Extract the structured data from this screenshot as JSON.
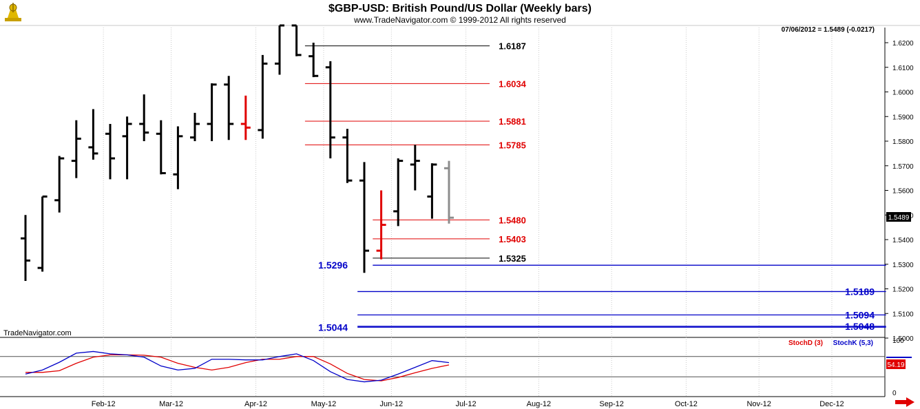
{
  "header": {
    "title": "$GBP-USD:  British Pound/US Dollar  (Weekly bars)",
    "copyright": "www.TradeNavigator.com © 1999-2012 All rights reserved",
    "quote": "07/06/2012 = 1.5489 (-0.0217)",
    "watermark": "TradeNavigator.com"
  },
  "colors": {
    "bar": "#000000",
    "bar_highlight": "#e00000",
    "bar_current": "#8c8c8c",
    "fib_black": "#000000",
    "fib_red": "#e00000",
    "fib_blue": "#0000c8",
    "stoch_d": "#e00000",
    "stoch_k": "#0000c8",
    "current_price_box": "#000000",
    "stoch_box": "#e00000",
    "arrow": "#e00000"
  },
  "chart_data": [
    {
      "type": "ohlc",
      "title": "$GBP-USD:  British Pound/US Dollar  (Weekly bars)",
      "ylim": [
        1.5005,
        1.6275
      ],
      "y_ticks": [
        "1.6200",
        "1.6100",
        "1.6000",
        "1.5900",
        "1.5800",
        "1.5700",
        "1.5600",
        "1.5500",
        "1.5400",
        "1.5300",
        "1.5200",
        "1.5100",
        "1.5000"
      ],
      "y_tick_values": [
        1.62,
        1.61,
        1.6,
        1.59,
        1.58,
        1.57,
        1.56,
        1.55,
        1.54,
        1.53,
        1.52,
        1.51,
        1.5
      ],
      "x_labels": [
        "Feb-12",
        "Mar-12",
        "Apr-12",
        "May-12",
        "Jun-12",
        "Jul-12",
        "Aug-12",
        "Sep-12",
        "Oct-12",
        "Nov-12",
        "Dec-12"
      ],
      "x_label_weeks": [
        4.6,
        8.6,
        13.6,
        17.6,
        21.6,
        26.0,
        30.3,
        34.6,
        39.0,
        43.3,
        47.6
      ],
      "current_price_label": "1.5489",
      "bars": [
        {
          "open": 1.5405,
          "high": 1.55,
          "low": 1.5232,
          "close": 1.5315,
          "style": "normal"
        },
        {
          "open": 1.5285,
          "high": 1.5575,
          "low": 1.527,
          "close": 1.5575,
          "style": "normal"
        },
        {
          "open": 1.556,
          "high": 1.574,
          "low": 1.551,
          "close": 1.573,
          "style": "normal"
        },
        {
          "open": 1.572,
          "high": 1.5885,
          "low": 1.565,
          "close": 1.581,
          "style": "normal"
        },
        {
          "open": 1.5775,
          "high": 1.593,
          "low": 1.5725,
          "close": 1.575,
          "style": "normal"
        },
        {
          "open": 1.583,
          "high": 1.587,
          "low": 1.5645,
          "close": 1.573,
          "style": "normal"
        },
        {
          "open": 1.582,
          "high": 1.59,
          "low": 1.5645,
          "close": 1.587,
          "style": "normal"
        },
        {
          "open": 1.587,
          "high": 1.599,
          "low": 1.58,
          "close": 1.5835,
          "style": "normal"
        },
        {
          "open": 1.583,
          "high": 1.5885,
          "low": 1.5665,
          "close": 1.567,
          "style": "normal"
        },
        {
          "open": 1.5665,
          "high": 1.586,
          "low": 1.5605,
          "close": 1.582,
          "style": "normal"
        },
        {
          "open": 1.5815,
          "high": 1.5915,
          "low": 1.58,
          "close": 1.587,
          "style": "normal"
        },
        {
          "open": 1.587,
          "high": 1.6035,
          "low": 1.58,
          "close": 1.603,
          "style": "normal"
        },
        {
          "open": 1.603,
          "high": 1.6065,
          "low": 1.5805,
          "close": 1.587,
          "style": "normal"
        },
        {
          "open": 1.587,
          "high": 1.5985,
          "low": 1.5805,
          "close": 1.5855,
          "style": "highlight"
        },
        {
          "open": 1.5845,
          "high": 1.615,
          "low": 1.581,
          "close": 1.6115,
          "style": "normal"
        },
        {
          "open": 1.6115,
          "high": 1.627,
          "low": 1.607,
          "close": 1.627,
          "style": "normal"
        },
        {
          "open": 1.627,
          "high": 1.627,
          "low": 1.6145,
          "close": 1.615,
          "style": "normal"
        },
        {
          "open": 1.6145,
          "high": 1.62,
          "low": 1.606,
          "close": 1.6065,
          "style": "normal"
        },
        {
          "open": 1.61,
          "high": 1.6125,
          "low": 1.573,
          "close": 1.5815,
          "style": "normal"
        },
        {
          "open": 1.5815,
          "high": 1.585,
          "low": 1.563,
          "close": 1.564,
          "style": "normal"
        },
        {
          "open": 1.564,
          "high": 1.5715,
          "low": 1.5265,
          "close": 1.5355,
          "style": "normal"
        },
        {
          "open": 1.5355,
          "high": 1.56,
          "low": 1.532,
          "close": 1.546,
          "style": "highlight"
        },
        {
          "open": 1.5515,
          "high": 1.573,
          "low": 1.5455,
          "close": 1.572,
          "style": "normal"
        },
        {
          "open": 1.5705,
          "high": 1.5785,
          "low": 1.56,
          "close": 1.572,
          "style": "normal"
        },
        {
          "open": 1.5575,
          "high": 1.571,
          "low": 1.5485,
          "close": 1.5705,
          "style": "normal"
        },
        {
          "open": 1.569,
          "high": 1.572,
          "low": 1.5465,
          "close": 1.5489,
          "style": "current"
        }
      ],
      "levels": [
        {
          "value": 1.6187,
          "label": "1.6187",
          "color_key": "fib_black",
          "start_week": 16.5,
          "end_week": 27.4,
          "label_side": "right"
        },
        {
          "value": 1.6034,
          "label": "1.6034",
          "color_key": "fib_red",
          "start_week": 16.5,
          "end_week": 27.4,
          "label_side": "right"
        },
        {
          "value": 1.5881,
          "label": "1.5881",
          "color_key": "fib_red",
          "start_week": 16.5,
          "end_week": 27.4,
          "label_side": "right"
        },
        {
          "value": 1.5785,
          "label": "1.5785",
          "color_key": "fib_red",
          "start_week": 16.5,
          "end_week": 27.4,
          "label_side": "right"
        },
        {
          "value": 1.548,
          "label": "1.5480",
          "color_key": "fib_red",
          "start_week": 20.5,
          "end_week": 27.4,
          "label_side": "right"
        },
        {
          "value": 1.5403,
          "label": "1.5403",
          "color_key": "fib_red",
          "start_week": 20.5,
          "end_week": 27.4,
          "label_side": "right"
        },
        {
          "value": 1.5325,
          "label": "1.5325",
          "color_key": "fib_black",
          "start_week": 20.5,
          "end_week": 27.4,
          "label_side": "right"
        },
        {
          "value": 1.5296,
          "label": "1.5296",
          "color_key": "fib_blue",
          "start_week": 20.5,
          "end_week": 50.8,
          "label_side": "left"
        },
        {
          "value": 1.5189,
          "label": "1.5189",
          "color_key": "fib_blue",
          "start_week": 19.6,
          "end_week": 50.8,
          "label_side": "far-right"
        },
        {
          "value": 1.5094,
          "label": "1.5094",
          "color_key": "fib_blue",
          "start_week": 19.6,
          "end_week": 50.8,
          "label_side": "far-right"
        },
        {
          "value": 1.5044,
          "label": "1.5044",
          "color_key": "fib_blue",
          "start_week": 19.6,
          "end_week": 50.8,
          "label_side": "left"
        },
        {
          "value": 1.5048,
          "label": "1.5048",
          "color_key": "fib_blue",
          "start_week": 19.6,
          "end_week": 50.8,
          "label_side": "far-right"
        }
      ]
    },
    {
      "type": "line",
      "ylim": [
        0,
        100
      ],
      "y_ticks": [
        "100",
        "0"
      ],
      "y_tick_values": [
        100,
        0
      ],
      "reference_lines": [
        80,
        20
      ],
      "current_value_label": "54.19",
      "series": [
        {
          "name": "StochD (3)",
          "color_key": "stoch_d",
          "values": [
            33,
            33,
            38,
            60,
            78,
            85,
            85,
            84,
            78,
            60,
            48,
            40,
            48,
            62,
            72,
            72,
            80,
            80,
            58,
            30,
            12,
            8,
            18,
            32,
            45,
            55
          ]
        },
        {
          "name": "StochK (5,3)",
          "color_key": "stoch_k",
          "values": [
            28,
            40,
            63,
            90,
            95,
            88,
            85,
            78,
            52,
            40,
            45,
            72,
            72,
            70,
            70,
            80,
            88,
            68,
            35,
            12,
            5,
            10,
            28,
            48,
            68,
            62
          ]
        }
      ]
    }
  ]
}
